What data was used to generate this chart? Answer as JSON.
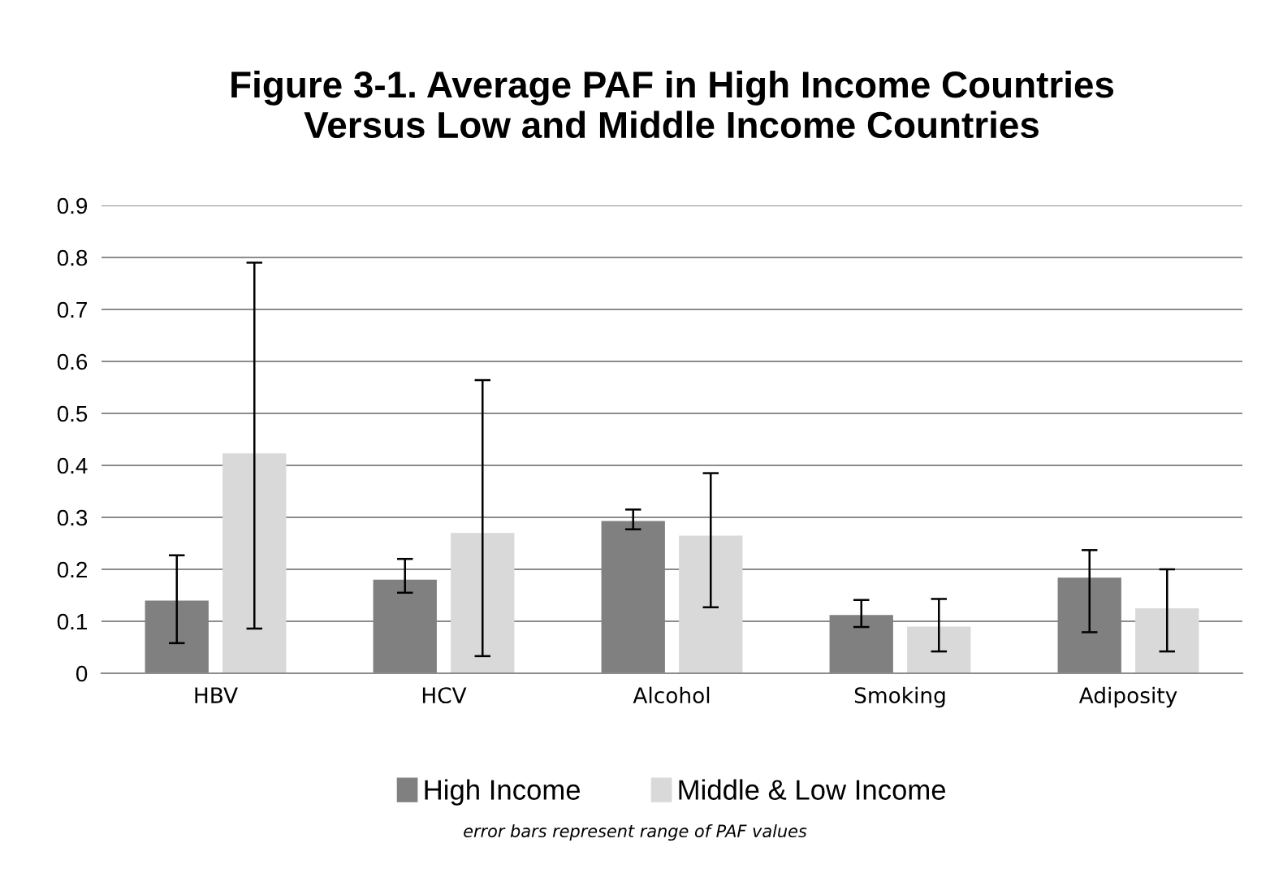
{
  "chart_data": {
    "type": "bar",
    "title": "Figure 3-1. Average PAF in High Income Countries\nVersus Low and Middle Income Countries",
    "categories": [
      "HBV",
      "HCV",
      "Alcohol",
      "Smoking",
      "Adiposity"
    ],
    "series": [
      {
        "name": "High Income",
        "color": "#808080",
        "values": [
          0.14,
          0.18,
          0.293,
          0.112,
          0.184
        ],
        "errors": [
          [
            0.058,
            0.227
          ],
          [
            0.155,
            0.22
          ],
          [
            0.277,
            0.315
          ],
          [
            0.089,
            0.141
          ],
          [
            0.079,
            0.237
          ]
        ]
      },
      {
        "name": "Middle & Low Income",
        "color": "#d9d9d9",
        "values": [
          0.423,
          0.27,
          0.265,
          0.09,
          0.125
        ],
        "errors": [
          [
            0.086,
            0.79
          ],
          [
            0.033,
            0.564
          ],
          [
            0.127,
            0.385
          ],
          [
            0.042,
            0.143
          ],
          [
            0.042,
            0.2
          ]
        ]
      }
    ],
    "ylim": [
      0,
      0.9
    ],
    "yticks": [
      {
        "value": 0,
        "label": "0"
      },
      0.1,
      0.2,
      0.3,
      0.4,
      0.5,
      0.6,
      0.7,
      0.8,
      0.9
    ],
    "grid": "y",
    "legend": "bottom",
    "annotations": [
      "error bars represent range of PAF values"
    ]
  }
}
